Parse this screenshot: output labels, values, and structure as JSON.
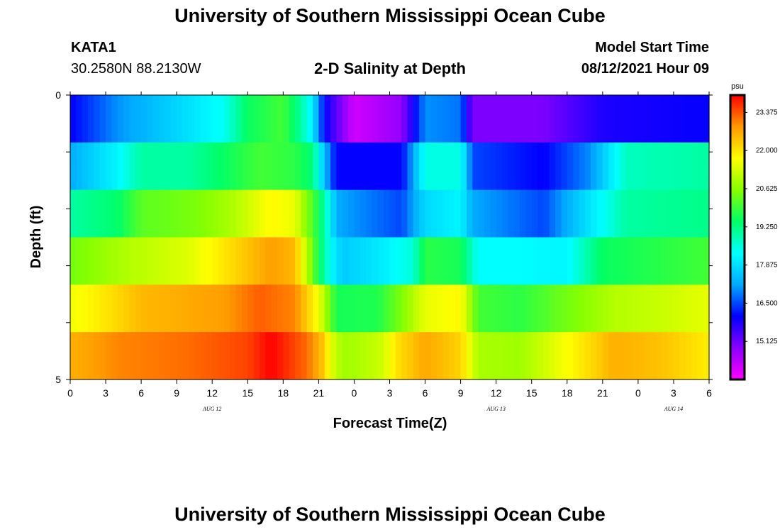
{
  "header": {
    "title_top": "University of Southern Mississippi Ocean Cube",
    "title_bottom": "University of Southern Mississippi Ocean Cube",
    "station_id": "KATA1",
    "station_coords": "30.2580N  88.2130W",
    "subtitle": "2-D Salinity at Depth",
    "model_start_label": "Model Start Time",
    "model_start_value": "08/12/2021 Hour 09"
  },
  "chart_data": {
    "type": "heatmap",
    "title": "2-D Salinity at Depth",
    "xlabel": "Forecast Time(Z)",
    "ylabel": "Depth (ft)",
    "x_tick_labels": [
      "0",
      "3",
      "6",
      "9",
      "12",
      "15",
      "18",
      "21",
      "0",
      "3",
      "6",
      "9",
      "12",
      "15",
      "18",
      "21",
      "0",
      "3",
      "6"
    ],
    "x_hours": [
      0,
      3,
      6,
      9,
      12,
      15,
      18,
      21,
      24,
      27,
      30,
      33,
      36,
      39,
      42,
      45,
      48,
      51,
      54
    ],
    "xlim_hours": [
      0,
      54
    ],
    "date_labels": [
      {
        "label": "AUG 12",
        "hour": 12
      },
      {
        "label": "AUG 13",
        "hour": 36
      },
      {
        "label": "AUG 14",
        "hour": 51
      }
    ],
    "y_tick_labels": [
      "0",
      "5"
    ],
    "ylim": [
      0,
      5
    ],
    "depth_layers": [
      0,
      1,
      2,
      3,
      4,
      5
    ],
    "colorbar": {
      "unit": "psu",
      "min": 13.75,
      "max": 24.0,
      "ticks": [
        "23.375",
        "22.000",
        "20.625",
        "19.250",
        "17.875",
        "16.500",
        "15.125"
      ],
      "tick_values": [
        23.375,
        22.0,
        20.625,
        19.25,
        17.875,
        16.5,
        15.125
      ],
      "colors": [
        "#ff00ff",
        "#8a00ff",
        "#0000ff",
        "#00aaff",
        "#00ffff",
        "#00ff66",
        "#88ff00",
        "#ffff00",
        "#ff9900",
        "#ff0000"
      ]
    },
    "series": [
      {
        "depth": 0,
        "keyframes": [
          [
            0,
            16.0
          ],
          [
            4,
            17.0
          ],
          [
            8,
            17.6
          ],
          [
            13,
            18.4
          ],
          [
            15,
            19.5
          ],
          [
            18,
            20.0
          ],
          [
            19.5,
            19.0
          ],
          [
            20.5,
            18.0
          ],
          [
            21.5,
            16.0
          ],
          [
            24,
            14.2
          ],
          [
            28,
            14.8
          ],
          [
            30,
            17.0
          ],
          [
            33,
            16.8
          ],
          [
            34,
            15.0
          ],
          [
            40,
            15.0
          ],
          [
            45,
            15.8
          ],
          [
            54,
            16.0
          ]
        ]
      },
      {
        "depth": 1,
        "keyframes": [
          [
            0,
            17.2
          ],
          [
            4,
            18.2
          ],
          [
            6,
            19.0
          ],
          [
            10,
            19.0
          ],
          [
            13,
            19.5
          ],
          [
            16,
            20.0
          ],
          [
            19,
            19.8
          ],
          [
            20.5,
            19.3
          ],
          [
            21.5,
            17.4
          ],
          [
            22.5,
            16.0
          ],
          [
            28,
            16.0
          ],
          [
            29,
            17.2
          ],
          [
            30,
            18.5
          ],
          [
            33,
            18.5
          ],
          [
            34,
            16.5
          ],
          [
            40,
            16.0
          ],
          [
            44,
            17.0
          ],
          [
            47,
            18.8
          ],
          [
            54,
            19.0
          ]
        ]
      },
      {
        "depth": 2,
        "keyframes": [
          [
            0,
            19.0
          ],
          [
            4,
            19.4
          ],
          [
            6,
            20.2
          ],
          [
            11,
            20.5
          ],
          [
            14,
            21.0
          ],
          [
            17,
            21.8
          ],
          [
            19,
            21.5
          ],
          [
            21,
            19.6
          ],
          [
            22,
            18.2
          ],
          [
            22.5,
            17.2
          ],
          [
            28,
            16.5
          ],
          [
            30,
            17.8
          ],
          [
            33,
            18.2
          ],
          [
            34,
            17.2
          ],
          [
            40,
            16.5
          ],
          [
            44,
            18.0
          ],
          [
            47,
            19.0
          ],
          [
            54,
            19.2
          ]
        ]
      },
      {
        "depth": 3,
        "keyframes": [
          [
            0,
            20.4
          ],
          [
            5,
            21.0
          ],
          [
            10,
            21.4
          ],
          [
            14,
            22.2
          ],
          [
            17,
            22.8
          ],
          [
            19,
            22.5
          ],
          [
            21,
            19.6
          ],
          [
            22,
            18.3
          ],
          [
            23,
            17.6
          ],
          [
            26,
            18.0
          ],
          [
            29,
            18.6
          ],
          [
            30,
            19.8
          ],
          [
            33,
            19.6
          ],
          [
            34.5,
            18.3
          ],
          [
            38,
            18.3
          ],
          [
            42,
            18.2
          ],
          [
            45,
            19.5
          ],
          [
            54,
            20.0
          ]
        ]
      },
      {
        "depth": 4,
        "keyframes": [
          [
            0,
            21.6
          ],
          [
            3,
            22.0
          ],
          [
            6,
            22.5
          ],
          [
            13,
            22.8
          ],
          [
            16,
            23.3
          ],
          [
            19,
            23.0
          ],
          [
            21,
            21.6
          ],
          [
            22,
            20.3
          ],
          [
            22.5,
            19.6
          ],
          [
            26,
            19.7
          ],
          [
            28,
            20.5
          ],
          [
            30,
            21.5
          ],
          [
            33,
            21.8
          ],
          [
            34.5,
            20.0
          ],
          [
            38,
            19.8
          ],
          [
            42,
            20.4
          ],
          [
            46,
            21.0
          ],
          [
            50,
            21.2
          ],
          [
            54,
            21.5
          ]
        ]
      },
      {
        "depth": 5,
        "keyframes": [
          [
            0,
            22.6
          ],
          [
            4,
            23.0
          ],
          [
            10,
            23.2
          ],
          [
            15,
            23.5
          ],
          [
            17,
            24.0
          ],
          [
            20,
            23.2
          ],
          [
            21.5,
            22.3
          ],
          [
            22,
            21.5
          ],
          [
            23,
            20.8
          ],
          [
            25,
            21.0
          ],
          [
            26.5,
            21.3
          ],
          [
            27.5,
            22.0
          ],
          [
            30,
            22.7
          ],
          [
            33,
            22.2
          ],
          [
            34.5,
            20.9
          ],
          [
            38,
            20.8
          ],
          [
            42,
            21.7
          ],
          [
            46,
            22.6
          ],
          [
            50,
            22.4
          ],
          [
            54,
            21.9
          ]
        ]
      }
    ]
  }
}
